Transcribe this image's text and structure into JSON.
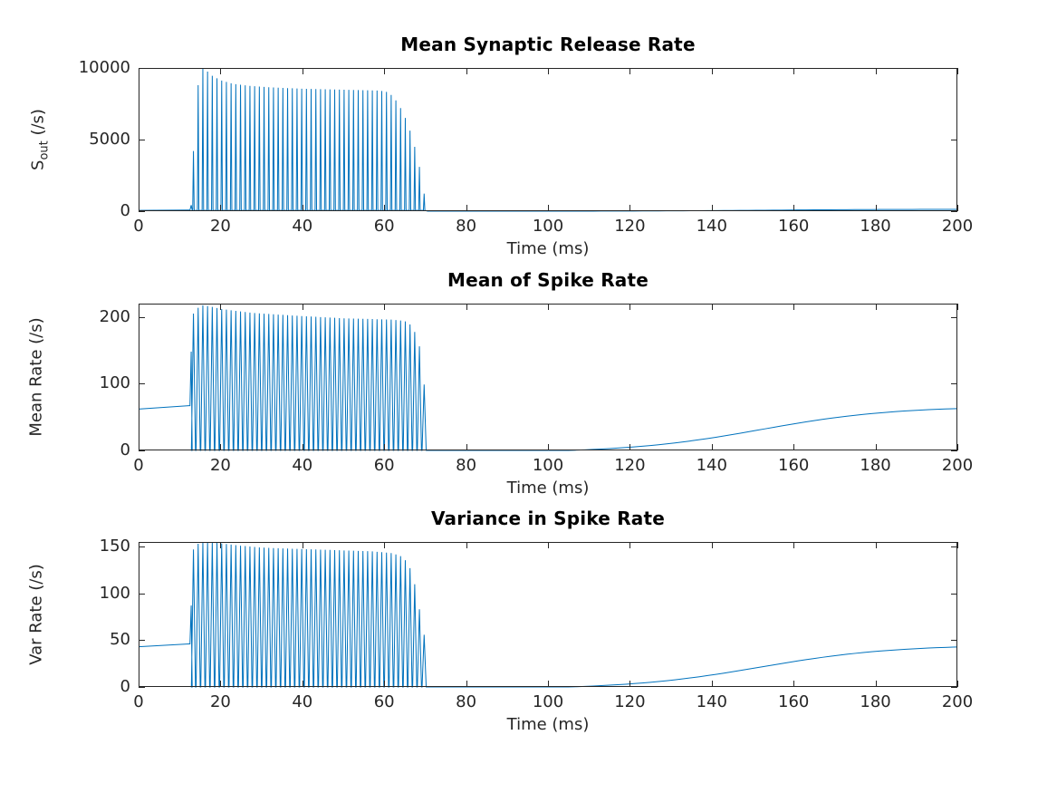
{
  "figure": {
    "background": "#ffffff",
    "axis_color": "#262626",
    "tick_label_color": "#262626",
    "title_color": "#000000"
  },
  "chart_data": [
    {
      "type": "line",
      "title": "Mean Synaptic Release Rate",
      "xlabel": "Time (ms)",
      "ylabel": "S_out (/s)",
      "ylabel_parts": {
        "prefix": "S",
        "sub": "out",
        "suffix": " (/s)"
      },
      "line_color": "#0072BD",
      "xlim": [
        0,
        200
      ],
      "ylim": [
        0,
        10000
      ],
      "xticks": [
        0,
        20,
        40,
        60,
        80,
        100,
        120,
        140,
        160,
        180,
        200
      ],
      "yticks": [
        0,
        5000,
        10000
      ],
      "grid": false,
      "legend": null,
      "series": {
        "baseline": {
          "t0": 0,
          "v0": 55,
          "t1": 12.3,
          "v1": 75
        },
        "prespike": {
          "t": 12.85,
          "peak": 420
        },
        "burst": {
          "t_start": 13.4,
          "t_end": 70.2,
          "period": 1.15,
          "spike_halfwidth": 0.18,
          "floor": 55,
          "envelope": [
            [
              13.4,
              4200
            ],
            [
              14.55,
              8800
            ],
            [
              15.7,
              10250
            ],
            [
              16.85,
              9750
            ],
            [
              18,
              9450
            ],
            [
              20,
              9150
            ],
            [
              23,
              8900
            ],
            [
              27,
              8750
            ],
            [
              32,
              8650
            ],
            [
              40,
              8550
            ],
            [
              50,
              8480
            ],
            [
              59,
              8420
            ],
            [
              61,
              8300
            ],
            [
              62.5,
              7900
            ],
            [
              64,
              7200
            ],
            [
              65.5,
              6300
            ],
            [
              66.8,
              5200
            ],
            [
              67.9,
              4000
            ],
            [
              68.9,
              2700
            ],
            [
              69.7,
              1300
            ],
            [
              70.4,
              300
            ]
          ]
        },
        "tail": {
          "t_start": 105,
          "center": 152,
          "width": 16,
          "amp": 135
        }
      }
    },
    {
      "type": "line",
      "title": "Mean of Spike Rate",
      "xlabel": "Time (ms)",
      "ylabel": "Mean Rate (/s)",
      "line_color": "#0072BD",
      "xlim": [
        0,
        200
      ],
      "ylim": [
        0,
        220
      ],
      "xticks": [
        0,
        20,
        40,
        60,
        80,
        100,
        120,
        140,
        160,
        180,
        200
      ],
      "yticks": [
        0,
        100,
        200
      ],
      "grid": false,
      "legend": null,
      "series": {
        "baseline": {
          "t0": 0,
          "v0": 62,
          "t1": 12.3,
          "v1": 67
        },
        "prespike": {
          "t": 12.85,
          "peak": 148
        },
        "burst": {
          "t_start": 13.4,
          "t_end": 70.0,
          "period": 1.15,
          "spike_halfwidth": 0.5,
          "floor": 0,
          "envelope": [
            [
              13.4,
              205
            ],
            [
              15.1,
              218
            ],
            [
              17.4,
              216
            ],
            [
              20,
              212
            ],
            [
              24,
              209
            ],
            [
              28,
              206
            ],
            [
              33,
              204
            ],
            [
              38,
              202
            ],
            [
              44,
              200
            ],
            [
              50,
              198
            ],
            [
              56,
              197
            ],
            [
              62,
              196
            ],
            [
              65,
              194
            ],
            [
              66.5,
              188
            ],
            [
              67.6,
              176
            ],
            [
              68.6,
              156
            ],
            [
              69.4,
              118
            ],
            [
              70,
              85
            ],
            [
              70.4,
              0
            ]
          ]
        },
        "tail": {
          "t_start": 105,
          "center": 152,
          "width": 16,
          "amp": 66
        }
      }
    },
    {
      "type": "line",
      "title": "Variance in Spike Rate",
      "xlabel": "Time (ms)",
      "ylabel": "Var Rate (/s)",
      "line_color": "#0072BD",
      "xlim": [
        0,
        200
      ],
      "ylim": [
        0,
        155
      ],
      "xticks": [
        0,
        20,
        40,
        60,
        80,
        100,
        120,
        140,
        160,
        180,
        200
      ],
      "yticks": [
        0,
        50,
        100,
        150
      ],
      "grid": false,
      "legend": null,
      "series": {
        "baseline": {
          "t0": 0,
          "v0": 43,
          "t1": 12.3,
          "v1": 46
        },
        "prespike": {
          "t": 12.85,
          "peak": 87
        },
        "burst": {
          "t_start": 13.4,
          "t_end": 70.0,
          "period": 1.15,
          "spike_halfwidth": 0.5,
          "floor": 0,
          "envelope": [
            [
              13.4,
              147
            ],
            [
              15.1,
              156
            ],
            [
              18,
              155
            ],
            [
              21,
              153
            ],
            [
              25,
              151
            ],
            [
              30,
              149
            ],
            [
              36,
              148
            ],
            [
              43,
              147
            ],
            [
              50,
              146
            ],
            [
              57,
              145
            ],
            [
              62,
              143
            ],
            [
              64.5,
              139
            ],
            [
              66,
              131
            ],
            [
              67.2,
              115
            ],
            [
              68.3,
              92
            ],
            [
              69.2,
              65
            ],
            [
              69.8,
              55
            ],
            [
              70.3,
              0
            ]
          ]
        },
        "tail": {
          "t_start": 105,
          "center": 152,
          "width": 16,
          "amp": 45
        }
      }
    }
  ]
}
